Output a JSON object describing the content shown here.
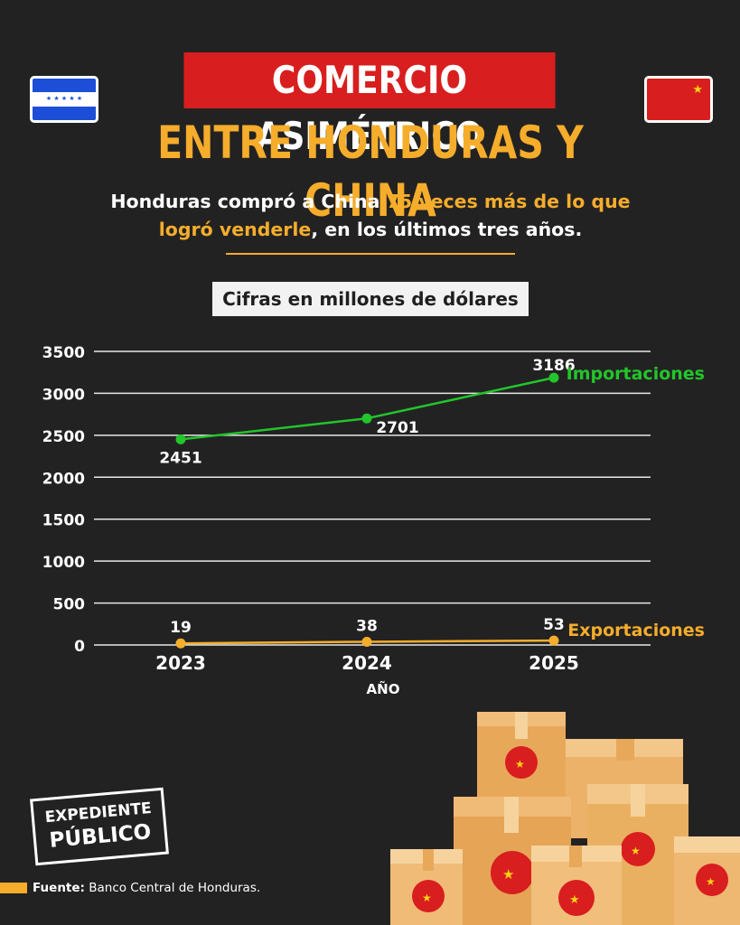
{
  "header": {
    "title_line1": "COMERCIO ASIMÉTRICO",
    "title_line2": "ENTRE HONDURAS Y CHINA"
  },
  "subtitle": {
    "part1": "Honduras compró a China ",
    "highlight1": "75 veces más de lo que logró venderle",
    "part2": ", en los últimos tres años."
  },
  "units_label": "Cifras en millones de dólares",
  "chart_data": {
    "type": "line",
    "x": [
      "2023",
      "2024",
      "2025"
    ],
    "xlabel": "AÑO",
    "ylabel": "",
    "ylim": [
      0,
      3500
    ],
    "yticks": [
      "0",
      "500",
      "1000",
      "1500",
      "2000",
      "2500",
      "3000",
      "3500"
    ],
    "grid": true,
    "series": [
      {
        "name": "Importaciones",
        "values": [
          2451,
          2701,
          3186
        ],
        "labels": [
          "2451",
          "2701",
          "3186"
        ],
        "color": "#22c52a"
      },
      {
        "name": "Exportaciones",
        "values": [
          19,
          38,
          53
        ],
        "labels": [
          "19",
          "38",
          "53"
        ],
        "color": "#f5ad2b"
      }
    ]
  },
  "logo": {
    "line1": "EXPEDIENTE",
    "line2": "PÚBLICO"
  },
  "footer": {
    "source_label": "Fuente:",
    "source_text": " Banco Central de Honduras."
  },
  "colors": {
    "accent_yellow": "#f5ad2b",
    "title_red": "#d81e1e",
    "background": "#232223",
    "import_green": "#22c52a"
  },
  "icons": [
    "honduras-flag-icon",
    "china-flag-icon",
    "cardboard-box-icon"
  ]
}
